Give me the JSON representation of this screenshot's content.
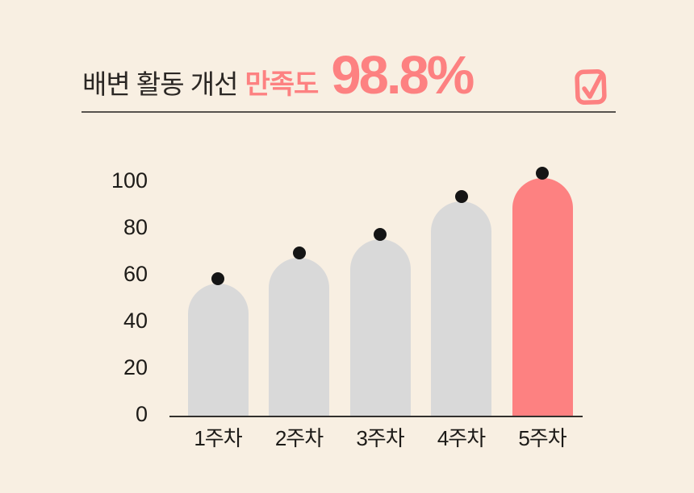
{
  "page": {
    "background_color": "#f8efe2",
    "accent_color": "#fd8181",
    "text_color": "#2b2724"
  },
  "header": {
    "title_prefix": "배변 활동 개선",
    "title_highlight": "만족도",
    "headline_value": "98.8%",
    "checkbox_icon": "checked-checkbox-icon"
  },
  "chart_data": {
    "type": "bar",
    "title": "배변 활동 개선 만족도 98.8%",
    "categories": [
      "1주차",
      "2주차",
      "3주차",
      "4주차",
      "5주차"
    ],
    "values": [
      59,
      70,
      78,
      94,
      104
    ],
    "highlight_index": 4,
    "bar_color_default": "#d9d9d9",
    "bar_color_highlight": "#fd8181",
    "marker_color": "#151515",
    "yticks": [
      0,
      20,
      40,
      60,
      80,
      100
    ],
    "ylim": [
      0,
      110
    ],
    "xlabel": "",
    "ylabel": "",
    "grid": false,
    "legend": false,
    "marker": "dot-on-bar-top",
    "bar_shape": "rounded-dome-top"
  }
}
